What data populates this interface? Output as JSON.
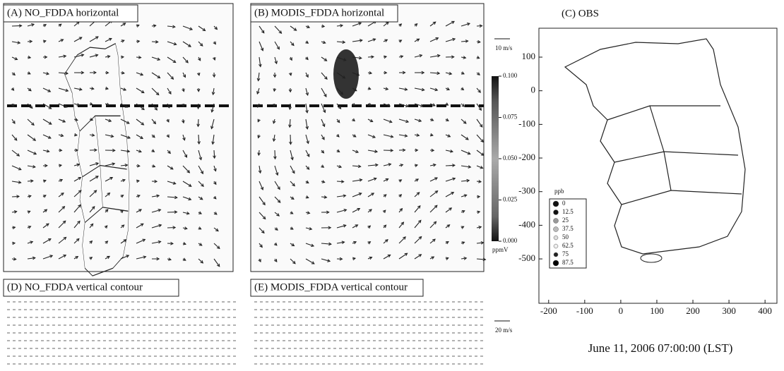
{
  "panels": [
    {
      "label": "(A) NO_FDDA horizontal"
    },
    {
      "label": "(B) MODIS_FDDA horizontal"
    },
    {
      "label": "(D) NO_FDDA vertical contour"
    },
    {
      "label": "(E) MODIS_FDDA vertical contour"
    }
  ],
  "wind_scales": [
    "10 m/s",
    "20 m/s"
  ],
  "colorbar": {
    "lim": [
      0,
      0.1
    ],
    "unit": "ppmV",
    "ticks": [
      {
        "value": 0.1,
        "label": "0.100"
      },
      {
        "value": 0.075,
        "label": "0.075"
      },
      {
        "value": 0.05,
        "label": "0.050"
      },
      {
        "value": 0.025,
        "label": "0.025"
      },
      {
        "value": 0,
        "label": "0.000"
      }
    ]
  },
  "obs": {
    "title": "(C) OBS",
    "xlim": [
      -227,
      433
    ],
    "ylim": [
      -632,
      186
    ],
    "xticks": [
      -200,
      -100,
      0,
      100,
      200,
      300,
      400
    ],
    "yticks": [
      100,
      0,
      -100,
      -200,
      -300,
      -400,
      -500
    ],
    "legend": {
      "title": "ppb",
      "entries": [
        0,
        12.5,
        25,
        37.5,
        50,
        62.5,
        75,
        87.5
      ]
    }
  },
  "caption": "June 11, 2006 07:00:00 (LST)"
}
